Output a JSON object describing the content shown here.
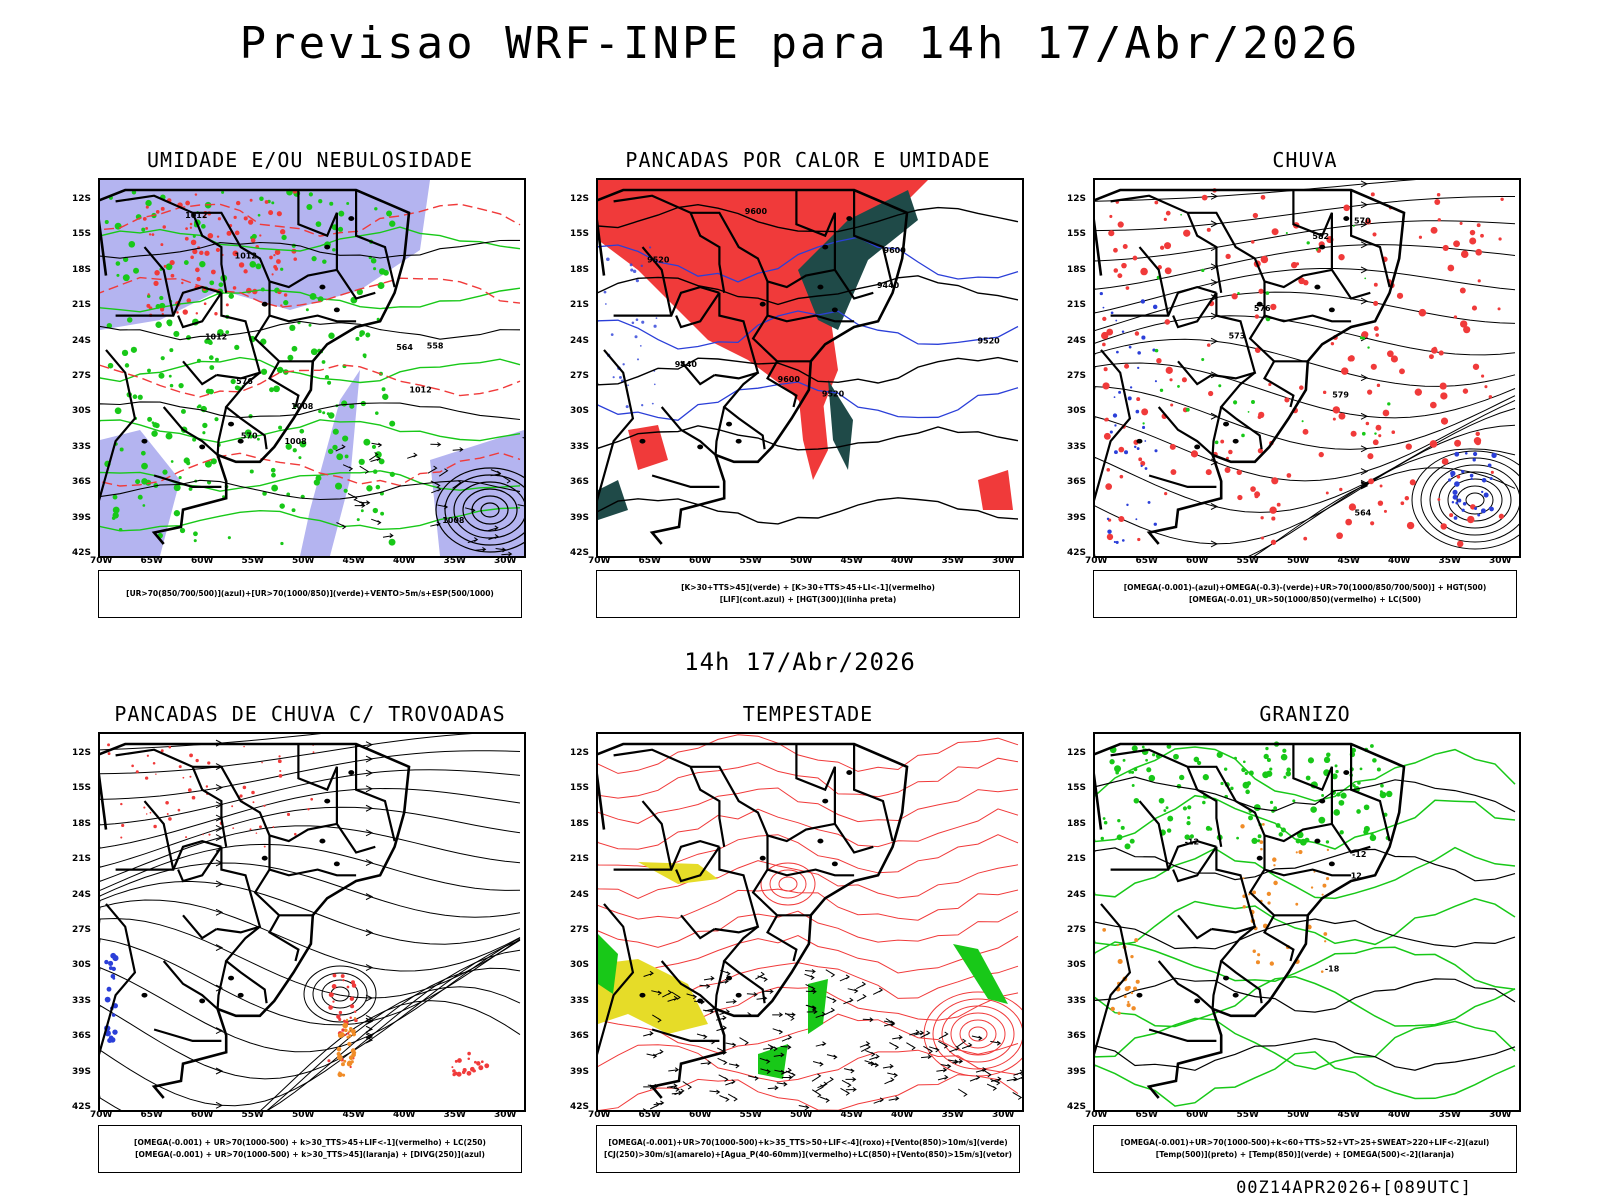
{
  "title": "Previsao WRF-INPE  para 14h 17/Abr/2026",
  "mid_title": "14h 17/Abr/2026",
  "footer": "00Z14APR2026+[089UTC]",
  "lat_labels": [
    "12S",
    "15S",
    "18S",
    "21S",
    "24S",
    "27S",
    "30S",
    "33S",
    "36S",
    "39S",
    "42S"
  ],
  "lon_labels": [
    "70W",
    "65W",
    "60W",
    "55W",
    "50W",
    "45W",
    "40W",
    "35W",
    "30W"
  ],
  "colors": {
    "blue": "#2b3fd8",
    "green": "#18c818",
    "red": "#f03a3a",
    "darkteal": "#1f4a48",
    "lavender": "#b4b4f0",
    "yellow": "#e6dc28",
    "orange": "#f08c28",
    "black": "#000000"
  },
  "panels": [
    {
      "id": "p1",
      "title": "UMIDADE E/OU NEBULOSIDADE",
      "legend": [
        "[UR>70(850/700/500)](azul)+[UR>70(1000/850)](verde)+VENTO>5m/s+ESP(500/1000)"
      ],
      "contour_labels": [
        "1008",
        "1012",
        "1012",
        "1012",
        "1008",
        "1012",
        "1008",
        "576",
        "570",
        "564",
        "558"
      ]
    },
    {
      "id": "p2",
      "title": "PANCADAS POR CALOR E UMIDADE",
      "legend": [
        "[K>30+TTS>45](verde) + [K>30+TTS>45+LI<-1](vermelho)",
        "[LIF](cont.azul) + [HGT(300)](linha preta)"
      ],
      "contour_labels": [
        "9600",
        "9600",
        "9520",
        "9600",
        "9520",
        "9440",
        "9520",
        "9440"
      ]
    },
    {
      "id": "p3",
      "title": "CHUVA",
      "legend": [
        "[OMEGA(-0.001)-(azul)+OMEGA(-0.3)-(verde)+UR>70(1000/850/700/500)] + HGT(500)",
        "[OMEGA(-0.01)_UR>50(1000/850)(vermelho) + LC(500)"
      ],
      "contour_labels": [
        "582",
        "579",
        "576",
        "573",
        "570",
        "564"
      ]
    },
    {
      "id": "p4",
      "title": "PANCADAS DE CHUVA C/ TROVOADAS",
      "legend": [
        "[OMEGA(-0.001) + UR>70(1000-500) + k>30_TTS>45+LIF<-1](vermelho) + LC(250)",
        "[OMEGA(-0.001) + UR>70(1000-500) + k>30_TTS>45](laranja) + [DIVG(250)](azul)"
      ],
      "contour_labels": []
    },
    {
      "id": "p5",
      "title": "TEMPESTADE",
      "legend": [
        "[OMEGA(-0.001)+UR>70(1000-500)+k>35_TTS>50+LIF<-4](roxo)+[Vento(850)>10m/s](verde)",
        "[CJ(250)>30m/s](amarelo)+[Agua_P(40-60mm)](vermelho)+LC(850)+[Vento(850)>15m/s](vetor)"
      ],
      "contour_labels": []
    },
    {
      "id": "p6",
      "title": "GRANIZO",
      "legend": [
        "[OMEGA(-0.001)+UR>70(1000-500)+k<60+TTS>52+VT>25+SWEAT>220+LIF<-2](azul)",
        "[Temp(500)](preto) + [Temp(850)](verde) + [OMEGA(500)<-2](laranja)"
      ],
      "contour_labels": [
        "-12",
        "12",
        "-12",
        "-18"
      ]
    }
  ]
}
